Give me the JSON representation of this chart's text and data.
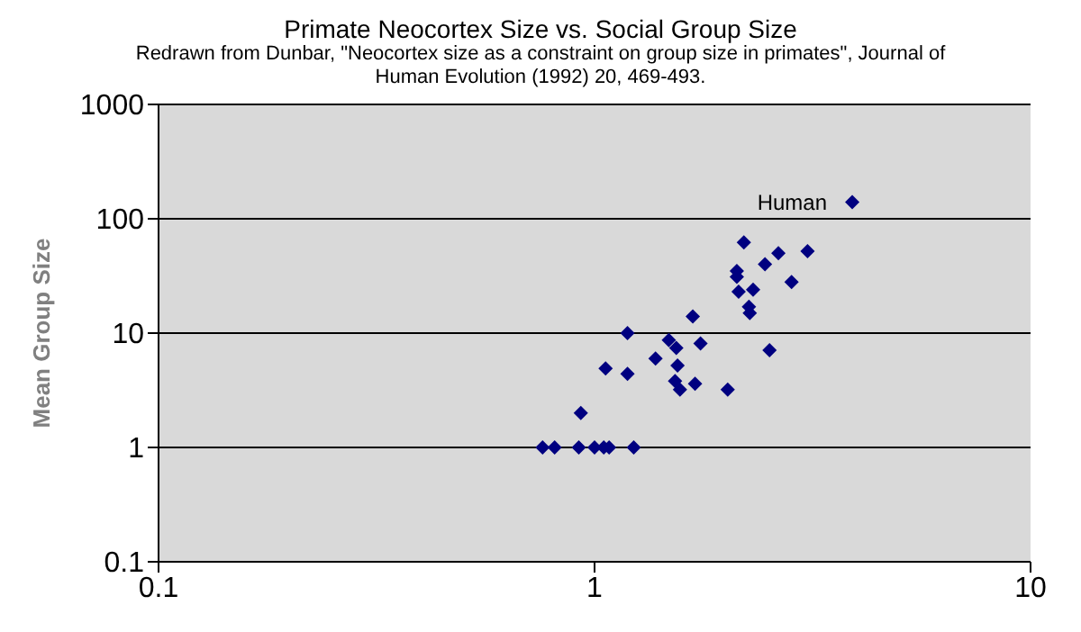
{
  "chart_data": {
    "type": "scatter",
    "title": "Primate Neocortex Size vs. Social Group Size",
    "subtitle": "Redrawn from Dunbar, \"Neocortex size as a constraint on group size in primates\", Journal of Human Evolution (1992) 20, 469-493.",
    "ylabel": "Mean Group Size",
    "x": [
      3.9,
      2.2,
      2.64,
      3.08,
      2.46,
      2.12,
      2.12,
      2.83,
      2.31,
      2.14,
      2.26,
      2.27,
      1.68,
      1.19,
      1.48,
      1.54,
      1.75,
      2.52,
      1.38,
      1.55,
      1.06,
      1.19,
      1.53,
      1.57,
      1.7,
      2.02,
      0.93,
      0.76,
      0.81,
      0.92,
      1.0,
      1.05,
      1.08,
      1.23
    ],
    "values": [
      140,
      62,
      50,
      52,
      40,
      35,
      31,
      28,
      24,
      23,
      17,
      15,
      14,
      10,
      8.7,
      7.4,
      8.1,
      7.1,
      6,
      5.2,
      4.9,
      4.4,
      3.8,
      3.2,
      3.6,
      3.2,
      2,
      1,
      1,
      1,
      1,
      1,
      1,
      1
    ],
    "color": "#000080",
    "marker": "diamond",
    "log": "xy",
    "grid": "y",
    "xlim": [
      0.1,
      10
    ],
    "xticks": [
      0.1,
      1,
      10
    ],
    "ylim": [
      0.1,
      1000
    ],
    "yticks": [
      0.1,
      1,
      10,
      100,
      1000
    ],
    "annotations": [
      {
        "text": "Human",
        "x": 3.9,
        "y": 140
      }
    ]
  }
}
